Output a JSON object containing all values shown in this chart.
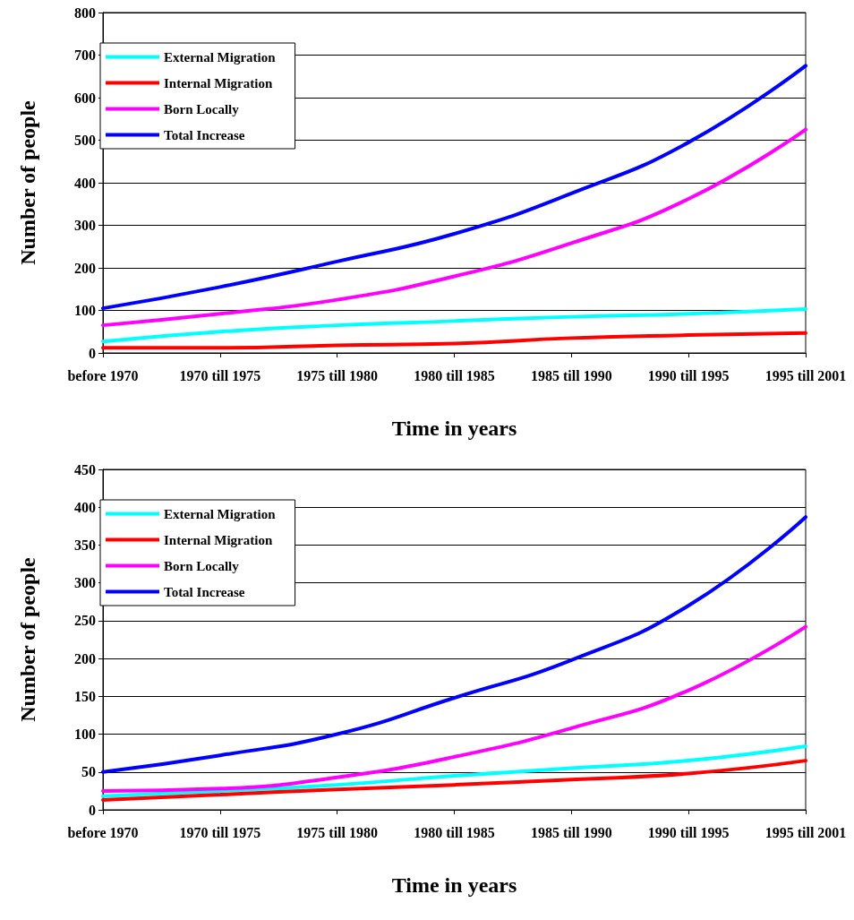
{
  "chart_data": [
    {
      "type": "line",
      "xlabel": "Time in years",
      "ylabel": "Number of people",
      "categories": [
        "before 1970",
        "1970 till 1975",
        "1975 till 1980",
        "1980 till 1985",
        "1985 till 1990",
        "1990 till 1995",
        "1995 till 2001"
      ],
      "series": [
        {
          "name": "External Migration",
          "color": "#00ffff",
          "values": [
            27,
            50,
            65,
            75,
            85,
            92,
            103
          ]
        },
        {
          "name": "Internal Migration",
          "color": "#ff0000",
          "values": [
            12,
            12,
            18,
            22,
            35,
            42,
            47
          ]
        },
        {
          "name": "Born Locally",
          "color": "#ff00ff",
          "values": [
            65,
            92,
            125,
            180,
            258,
            362,
            525
          ]
        },
        {
          "name": "Total Increase",
          "color": "#0000ff",
          "values": [
            105,
            155,
            215,
            280,
            375,
            495,
            675
          ]
        }
      ],
      "ylim": [
        0,
        800
      ],
      "yticks": [
        0,
        100,
        200,
        300,
        400,
        500,
        600,
        700,
        800
      ],
      "grid": "y",
      "legend": "top left",
      "marker": "none",
      "line_style": "solid"
    },
    {
      "type": "line",
      "xlabel": "Time in years",
      "ylabel": "Number of people",
      "categories": [
        "before 1970",
        "1970 till 1975",
        "1975 till 1980",
        "1980 till 1985",
        "1985 till 1990",
        "1990 till 1995",
        "1995 till 2001"
      ],
      "series": [
        {
          "name": "External Migration",
          "color": "#00ffff",
          "values": [
            18,
            25,
            33,
            45,
            55,
            65,
            84
          ]
        },
        {
          "name": "Internal Migration",
          "color": "#ff0000",
          "values": [
            13,
            20,
            27,
            33,
            40,
            48,
            65
          ]
        },
        {
          "name": "Born Locally",
          "color": "#ff00ff",
          "values": [
            25,
            28,
            43,
            70,
            108,
            158,
            242
          ]
        },
        {
          "name": "Total Increase",
          "color": "#0000ff",
          "values": [
            50,
            72,
            100,
            148,
            198,
            270,
            387
          ]
        }
      ],
      "ylim": [
        0,
        450
      ],
      "yticks": [
        0,
        50,
        100,
        150,
        200,
        250,
        300,
        350,
        400,
        450
      ],
      "grid": "y",
      "legend": "top left",
      "marker": "none",
      "line_style": "solid"
    }
  ]
}
